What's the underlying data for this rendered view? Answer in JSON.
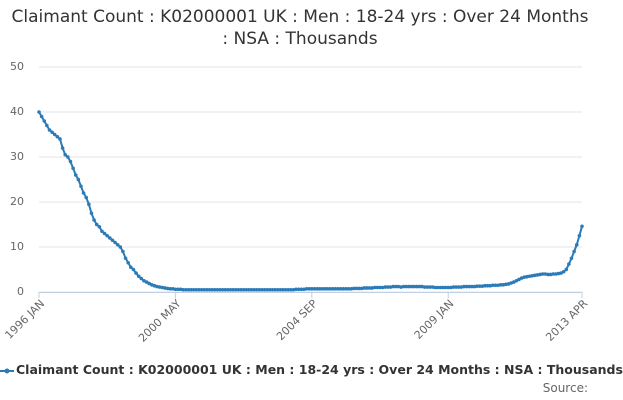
{
  "chart_data": {
    "type": "line",
    "title": "Claimant Count : K02000001 UK : Men : 18-24 yrs : Over 24 Months : NSA : Thousands",
    "source": "Source:",
    "categories": [
      "1996 JAN",
      null,
      null,
      null,
      null,
      null,
      null,
      null,
      null,
      null,
      null,
      null,
      null,
      null,
      null,
      null,
      null,
      null,
      null,
      null,
      null,
      null,
      null,
      null,
      null,
      null,
      null,
      null,
      null,
      null,
      null,
      null,
      null,
      null,
      null,
      null,
      null,
      null,
      null,
      null,
      null,
      null,
      null,
      null,
      null,
      null,
      null,
      null,
      null,
      null,
      null,
      null,
      "2000 MAY",
      null,
      null,
      null,
      null,
      null,
      null,
      null,
      null,
      null,
      null,
      null,
      null,
      null,
      null,
      null,
      null,
      null,
      null,
      null,
      null,
      null,
      null,
      null,
      null,
      null,
      null,
      null,
      null,
      null,
      null,
      null,
      null,
      null,
      null,
      null,
      null,
      null,
      null,
      null,
      null,
      null,
      null,
      null,
      null,
      null,
      null,
      null,
      null,
      null,
      null,
      null,
      "2004 SEP",
      null,
      null,
      null,
      null,
      null,
      null,
      null,
      null,
      null,
      null,
      null,
      null,
      null,
      null,
      null,
      null,
      null,
      null,
      null,
      null,
      null,
      null,
      null,
      null,
      null,
      null,
      null,
      null,
      null,
      null,
      null,
      null,
      null,
      null,
      null,
      null,
      null,
      null,
      null,
      null,
      null,
      null,
      null,
      null,
      null,
      null,
      null,
      null,
      null,
      null,
      null,
      "2009 JAN",
      null,
      null,
      null,
      null,
      null,
      null,
      null,
      null,
      null,
      null,
      null,
      null,
      null,
      null,
      null,
      null,
      null,
      null,
      null,
      null,
      null,
      null,
      null,
      null,
      null,
      null,
      null,
      null,
      null,
      null,
      null,
      null,
      null,
      null,
      null,
      null,
      null,
      null,
      null,
      null,
      null,
      null,
      null,
      null,
      null,
      null,
      null,
      null,
      null,
      null,
      "2013 APR"
    ],
    "series": [
      {
        "name": "Claimant Count : K02000001 UK : Men : 18-24 yrs : Over 24 Months : NSA : Thousands",
        "color": "#2b7bb9",
        "values": [
          40,
          39,
          38,
          37,
          36,
          35.5,
          35,
          34.5,
          34,
          32,
          30.5,
          30,
          29,
          27.5,
          26,
          25,
          23.5,
          22,
          21,
          19.5,
          17.5,
          16,
          15,
          14.5,
          13.5,
          13,
          12.5,
          12,
          11.5,
          11,
          10.5,
          10,
          9,
          7.5,
          6.5,
          5.5,
          5,
          4.2,
          3.5,
          3,
          2.5,
          2.2,
          1.9,
          1.6,
          1.4,
          1.2,
          1.1,
          1,
          0.9,
          0.8,
          0.7,
          0.7,
          0.6,
          0.6,
          0.6,
          0.5,
          0.5,
          0.5,
          0.5,
          0.5,
          0.5,
          0.5,
          0.5,
          0.5,
          0.5,
          0.5,
          0.5,
          0.5,
          0.5,
          0.5,
          0.5,
          0.5,
          0.5,
          0.5,
          0.5,
          0.5,
          0.5,
          0.5,
          0.5,
          0.5,
          0.5,
          0.5,
          0.5,
          0.5,
          0.5,
          0.5,
          0.5,
          0.5,
          0.5,
          0.5,
          0.5,
          0.5,
          0.5,
          0.5,
          0.5,
          0.5,
          0.5,
          0.5,
          0.6,
          0.6,
          0.6,
          0.6,
          0.7,
          0.7,
          0.7,
          0.7,
          0.7,
          0.7,
          0.7,
          0.7,
          0.7,
          0.7,
          0.7,
          0.7,
          0.7,
          0.7,
          0.7,
          0.7,
          0.7,
          0.7,
          0.8,
          0.8,
          0.8,
          0.8,
          0.9,
          0.9,
          0.9,
          0.9,
          1,
          1,
          1,
          1,
          1.1,
          1.1,
          1.1,
          1.2,
          1.2,
          1.2,
          1.1,
          1.2,
          1.2,
          1.2,
          1.2,
          1.2,
          1.2,
          1.2,
          1.2,
          1.1,
          1.1,
          1.1,
          1.1,
          1,
          1,
          1,
          1,
          1,
          1,
          1,
          1.1,
          1.1,
          1.1,
          1.1,
          1.2,
          1.2,
          1.2,
          1.2,
          1.2,
          1.3,
          1.3,
          1.3,
          1.4,
          1.4,
          1.4,
          1.5,
          1.5,
          1.5,
          1.6,
          1.6,
          1.7,
          1.8,
          2,
          2.2,
          2.5,
          2.8,
          3.1,
          3.3,
          3.4,
          3.5,
          3.6,
          3.7,
          3.8,
          3.9,
          4,
          4,
          3.9,
          3.9,
          4,
          4,
          4.1,
          4.2,
          4.5,
          5,
          6.2,
          7.5,
          9,
          10.5,
          12.5,
          14.6
        ]
      }
    ],
    "ylim": [
      0,
      50
    ],
    "yticks": [
      0,
      10,
      20,
      30,
      40,
      50
    ],
    "grid": true
  }
}
